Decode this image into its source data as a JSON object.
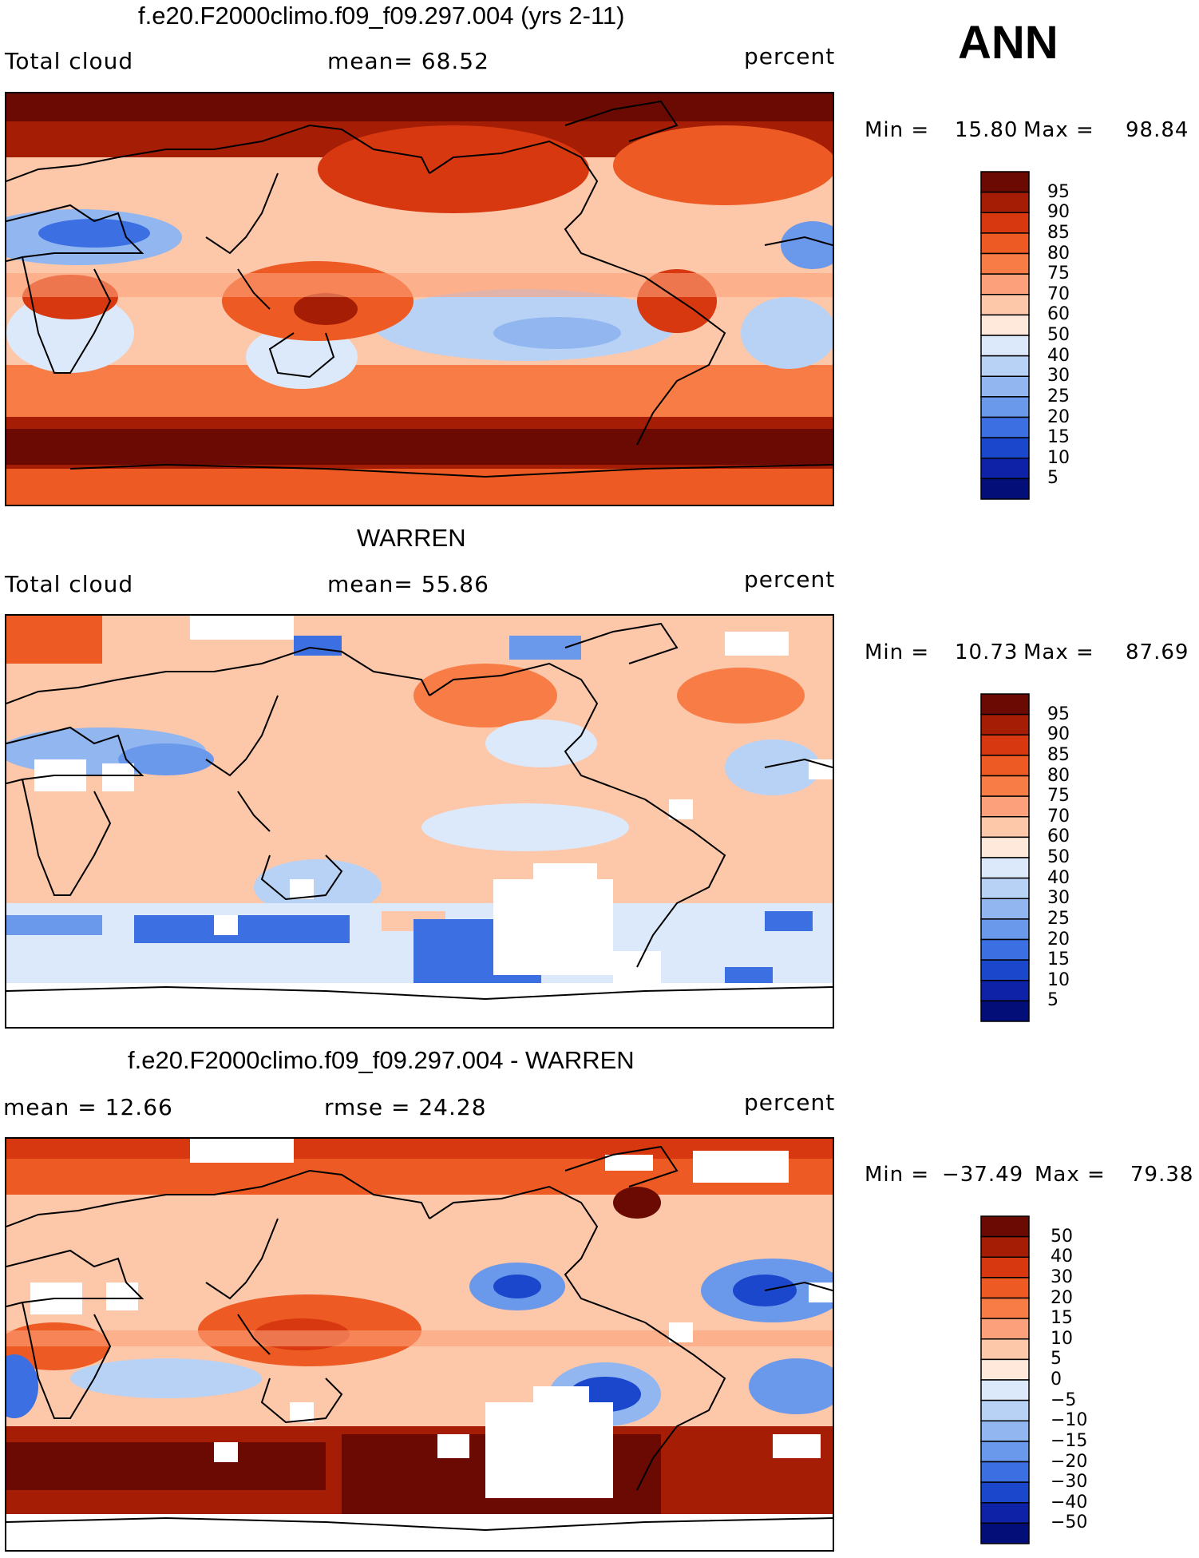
{
  "season": "ANN",
  "panels": [
    {
      "title": "f.e20.F2000climo.f09_f09.297.004 (yrs 2-11)",
      "left_label": "Total cloud",
      "mid_label": "mean=   68.52",
      "units": "percent",
      "min_label": "Min =",
      "min_value": "15.80",
      "max_label": "Max =",
      "max_value": "98.84",
      "levels": [
        "95",
        "90",
        "85",
        "80",
        "75",
        "70",
        "60",
        "50",
        "40",
        "30",
        "25",
        "20",
        "15",
        "10",
        "5"
      ]
    },
    {
      "title": "WARREN",
      "left_label": "Total cloud",
      "mid_label": "mean=   55.86",
      "units": "percent",
      "min_label": "Min =",
      "min_value": "10.73",
      "max_label": "Max =",
      "max_value": "87.69",
      "levels": [
        "95",
        "90",
        "85",
        "80",
        "75",
        "70",
        "60",
        "50",
        "40",
        "30",
        "25",
        "20",
        "15",
        "10",
        "5"
      ]
    },
    {
      "title": "f.e20.F2000climo.f09_f09.297.004 - WARREN",
      "left_label": "mean =   12.66",
      "mid_label": "rmse =   24.28",
      "units": "percent",
      "min_label": "Min =",
      "min_value": "−37.49",
      "max_label": "Max =",
      "max_value": "79.38",
      "levels": [
        "50",
        "40",
        "30",
        "20",
        "15",
        "10",
        "5",
        "0",
        "−5",
        "−10",
        "−15",
        "−20",
        "−30",
        "−40",
        "−50"
      ]
    }
  ],
  "colors": {
    "scale": [
      "#6b0a02",
      "#a51d05",
      "#d7380f",
      "#ee5a23",
      "#f77c45",
      "#fba07a",
      "#fdc7a9",
      "#fee9db",
      "#dce9fa",
      "#b8d2f6",
      "#91b6f0",
      "#6a98ea",
      "#3c6fe2",
      "#1b47cc",
      "#0d22a6",
      "#040e78"
    ],
    "map_bg": "#fee2d2",
    "missing": "#ffffff",
    "coast": "#000000"
  },
  "chart_data": [
    {
      "type": "heatmap",
      "title": "f.e20.F2000climo.f09_f09.297.004 (yrs 2-11)",
      "variable": "Total cloud",
      "units": "percent",
      "mean": 68.52,
      "min": 15.8,
      "max": 98.84,
      "contour_levels": [
        5,
        10,
        15,
        20,
        25,
        30,
        40,
        50,
        60,
        70,
        75,
        80,
        85,
        90,
        95
      ]
    },
    {
      "type": "heatmap",
      "title": "WARREN",
      "variable": "Total cloud",
      "units": "percent",
      "mean": 55.86,
      "min": 10.73,
      "max": 87.69,
      "contour_levels": [
        5,
        10,
        15,
        20,
        25,
        30,
        40,
        50,
        60,
        70,
        75,
        80,
        85,
        90,
        95
      ]
    },
    {
      "type": "heatmap",
      "title": "f.e20.F2000climo.f09_f09.297.004 - WARREN",
      "units": "percent",
      "mean": 12.66,
      "rmse": 24.28,
      "min": -37.49,
      "max": 79.38,
      "contour_levels": [
        -50,
        -40,
        -30,
        -20,
        -15,
        -10,
        -5,
        0,
        5,
        10,
        15,
        20,
        30,
        40,
        50
      ]
    }
  ]
}
